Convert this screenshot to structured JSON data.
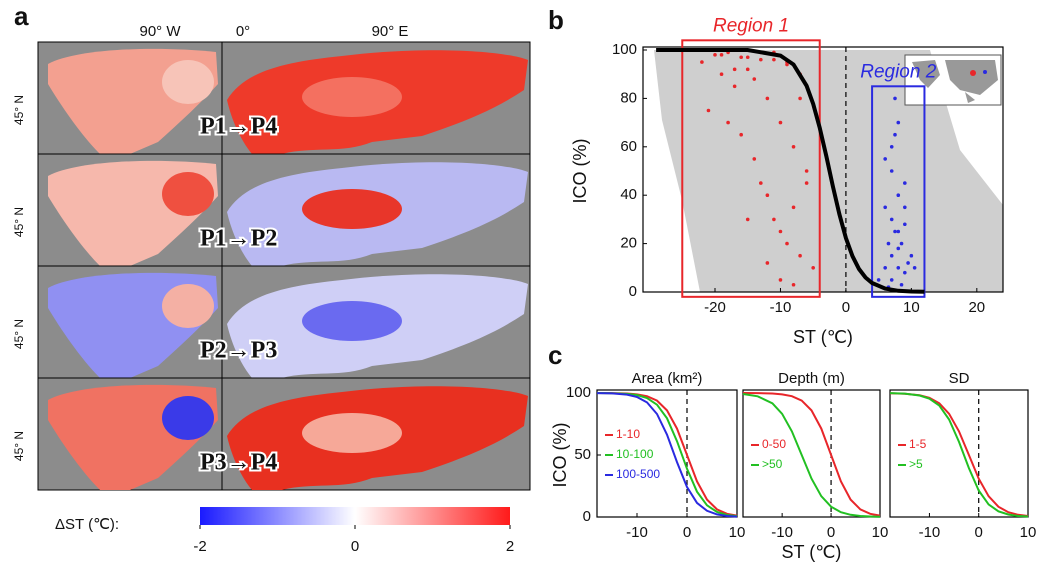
{
  "panel_labels": [
    "a",
    "b",
    "c"
  ],
  "maps": {
    "longitude_labels": [
      "90° W",
      "0°",
      "90° E"
    ],
    "latitude_label": "45° N",
    "rows": [
      "P1→P4",
      "P1→P2",
      "P2→P3",
      "P3→P4"
    ],
    "colorbar": {
      "label": "ΔST (℃):",
      "ticks": [
        -2,
        0,
        2
      ],
      "colors": [
        "#1a1aff",
        "#ffffff",
        "#ff1a1a"
      ]
    }
  },
  "chart_data": [
    {
      "type": "scatter",
      "xlabel": "ST (℃)",
      "ylabel": "ICO (%)",
      "xlim": [
        -31,
        24
      ],
      "ylim": [
        0,
        100
      ],
      "xticks": [
        -20,
        -10,
        0,
        10,
        20
      ],
      "yticks": [
        0,
        20,
        40,
        60,
        80,
        100
      ],
      "vline": 0,
      "regions": [
        {
          "name": "Region 1",
          "color": "#e8262a",
          "xlim": [
            -25,
            -4
          ],
          "ylim": [
            -2,
            104
          ]
        },
        {
          "name": "Region 2",
          "color": "#2a2ae0",
          "xlim": [
            4,
            12
          ],
          "ylim": [
            -2,
            85
          ]
        }
      ],
      "series": [
        {
          "color": "#e8262a",
          "marker": "dot",
          "x": [
            -22,
            -20,
            -19,
            -18,
            -17,
            -16,
            -15,
            -14,
            -13,
            -12,
            -11,
            -10,
            -9,
            -8,
            -7,
            -6,
            -21,
            -18,
            -16,
            -14,
            -13,
            -12,
            -11,
            -10,
            -9,
            -8,
            -7,
            -6,
            -5,
            -19,
            -17,
            -15,
            -13,
            -11,
            -9,
            -7,
            -15,
            -12,
            -10,
            -8
          ],
          "values": [
            95,
            98,
            90,
            99,
            85,
            97,
            92,
            88,
            99,
            80,
            96,
            70,
            94,
            60,
            90,
            50,
            75,
            70,
            65,
            55,
            45,
            40,
            30,
            25,
            20,
            35,
            15,
            45,
            10,
            98,
            92,
            97,
            96,
            99,
            95,
            80,
            30,
            12,
            5,
            3
          ]
        },
        {
          "color": "#2a2ae0",
          "marker": "dot",
          "x": [
            5,
            6,
            6.5,
            7,
            7,
            7.5,
            8,
            8,
            8.5,
            9,
            9,
            10,
            6,
            7,
            8,
            9,
            7.5,
            8.5,
            6.5,
            7,
            8,
            9.5,
            7,
            8,
            6,
            9,
            10.5,
            7.5
          ],
          "values": [
            5,
            10,
            20,
            15,
            30,
            25,
            10,
            40,
            20,
            8,
            35,
            15,
            55,
            60,
            70,
            45,
            80,
            3,
            2,
            50,
            25,
            12,
            5,
            18,
            35,
            28,
            10,
            65
          ]
        },
        {
          "color": "#000000",
          "marker": "line",
          "x": [
            -29,
            -20,
            -15,
            -10,
            -8,
            -6,
            -5,
            -4,
            -3,
            -2,
            -1,
            0,
            1,
            2,
            3,
            4,
            6,
            8,
            10,
            12
          ],
          "values": [
            100,
            100,
            100,
            97.7,
            94.0,
            85.2,
            77.7,
            67.9,
            56.2,
            43.8,
            32.1,
            22.3,
            14.8,
            9.5,
            6.0,
            3.7,
            1.4,
            0.5,
            0.2,
            0.1
          ]
        }
      ]
    },
    {
      "type": "line",
      "title": "Area (km²)",
      "ylabel": "ICO (%)",
      "xlim": [
        -18,
        10
      ],
      "ylim": [
        0,
        100
      ],
      "xticks": [
        -10,
        0,
        10
      ],
      "yticks": [
        0,
        50,
        100
      ],
      "vline": 0,
      "x": [
        -18,
        -15,
        -12,
        -10,
        -8,
        -6,
        -4,
        -2,
        0,
        2,
        4,
        6,
        8,
        10
      ],
      "series": [
        {
          "name": "1-10",
          "color": "#e8262a",
          "values": [
            100,
            99.9,
            99.6,
            98.9,
            97.4,
            93.9,
            86.0,
            71.3,
            50,
            28.7,
            14.0,
            6.1,
            2.6,
            1.1
          ]
        },
        {
          "name": "10-100",
          "color": "#22c022",
          "values": [
            100,
            99.8,
            99.3,
            98.4,
            96.0,
            90.6,
            79.6,
            61.1,
            38.9,
            20.4,
            9.4,
            4.0,
            1.6,
            0.7
          ]
        },
        {
          "name": "100-500",
          "color": "#2a2ae0",
          "values": [
            99.9,
            99.7,
            98.7,
            96.8,
            92.4,
            83.1,
            66.4,
            44.3,
            24.2,
            11.4,
            5.0,
            2.1,
            0.8,
            0.3
          ]
        }
      ]
    },
    {
      "type": "line",
      "title": "Depth (m)",
      "xlabel": "ST (℃)",
      "xlim": [
        -18,
        10
      ],
      "ylim": [
        0,
        100
      ],
      "xticks": [
        -10,
        0,
        10
      ],
      "vline": 0,
      "x": [
        -18,
        -15,
        -12,
        -10,
        -8,
        -6,
        -4,
        -2,
        0,
        2,
        4,
        6,
        8,
        10
      ],
      "series": [
        {
          "name": "0-50",
          "color": "#e8262a",
          "values": [
            100,
            99.9,
            99.6,
            98.9,
            97.4,
            93.9,
            86.0,
            71.3,
            50,
            28.7,
            14.0,
            6.1,
            2.6,
            1.1
          ]
        },
        {
          "name": ">50",
          "color": "#22c022",
          "values": [
            99.2,
            97.3,
            91.7,
            83.2,
            69.0,
            50,
            31.0,
            16.8,
            8.3,
            3.9,
            1.8,
            0.8,
            0.4,
            0.2
          ]
        }
      ]
    },
    {
      "type": "line",
      "title": "SD",
      "xlim": [
        -18,
        10
      ],
      "ylim": [
        0,
        100
      ],
      "xticks": [
        -10,
        0,
        10
      ],
      "vline": 0,
      "x": [
        -18,
        -15,
        -12,
        -10,
        -8,
        -6,
        -4,
        -2,
        0,
        2,
        4,
        6,
        8,
        10
      ],
      "series": [
        {
          "name": "1-5",
          "color": "#e8262a",
          "values": [
            99.8,
            99.4,
            98.2,
            96.1,
            91.7,
            83.2,
            69.0,
            50,
            31.0,
            16.8,
            8.3,
            3.9,
            1.8,
            0.8
          ]
        },
        {
          "name": ">5",
          "color": "#22c022",
          "values": [
            99.9,
            99.5,
            98.0,
            95.4,
            89.8,
            78.6,
            60.6,
            39.4,
            21.4,
            10.2,
            4.6,
            2.0,
            0.8,
            0.4
          ]
        }
      ]
    }
  ]
}
